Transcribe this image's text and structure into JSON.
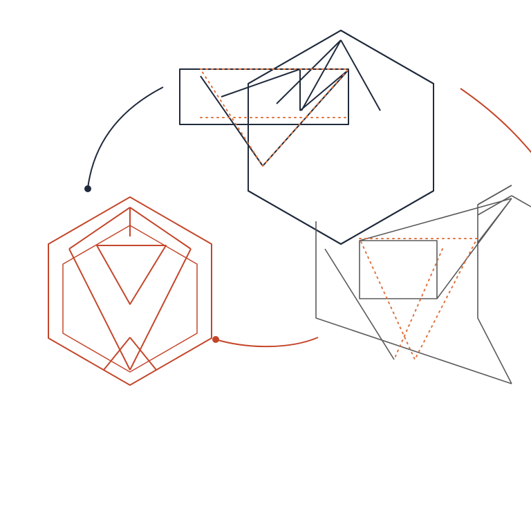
{
  "colors": {
    "background": "#ffffff",
    "navy": "#1f2a3c",
    "rust": "#c4462a",
    "gray": "#5a5a5a",
    "dotted_orange": "#e0723c"
  },
  "components": [
    {
      "name": "navy-hexagon-figure",
      "color_key": "navy",
      "role": "hexagon-with-nested-triangles"
    },
    {
      "name": "rust-hexagon-figure",
      "color_key": "rust",
      "role": "hexagon-with-nested-triangles"
    },
    {
      "name": "gray-hexagon-figure",
      "color_key": "gray",
      "role": "hexagon-with-nested-triangles"
    },
    {
      "name": "navy-connector-arc",
      "color_key": "navy",
      "role": "arc-with-endpoint"
    },
    {
      "name": "rust-connector-arc",
      "color_key": "rust",
      "role": "arc-with-endpoint"
    },
    {
      "name": "rust-bottom-arc",
      "color_key": "rust",
      "role": "arc-with-endpoint"
    }
  ]
}
